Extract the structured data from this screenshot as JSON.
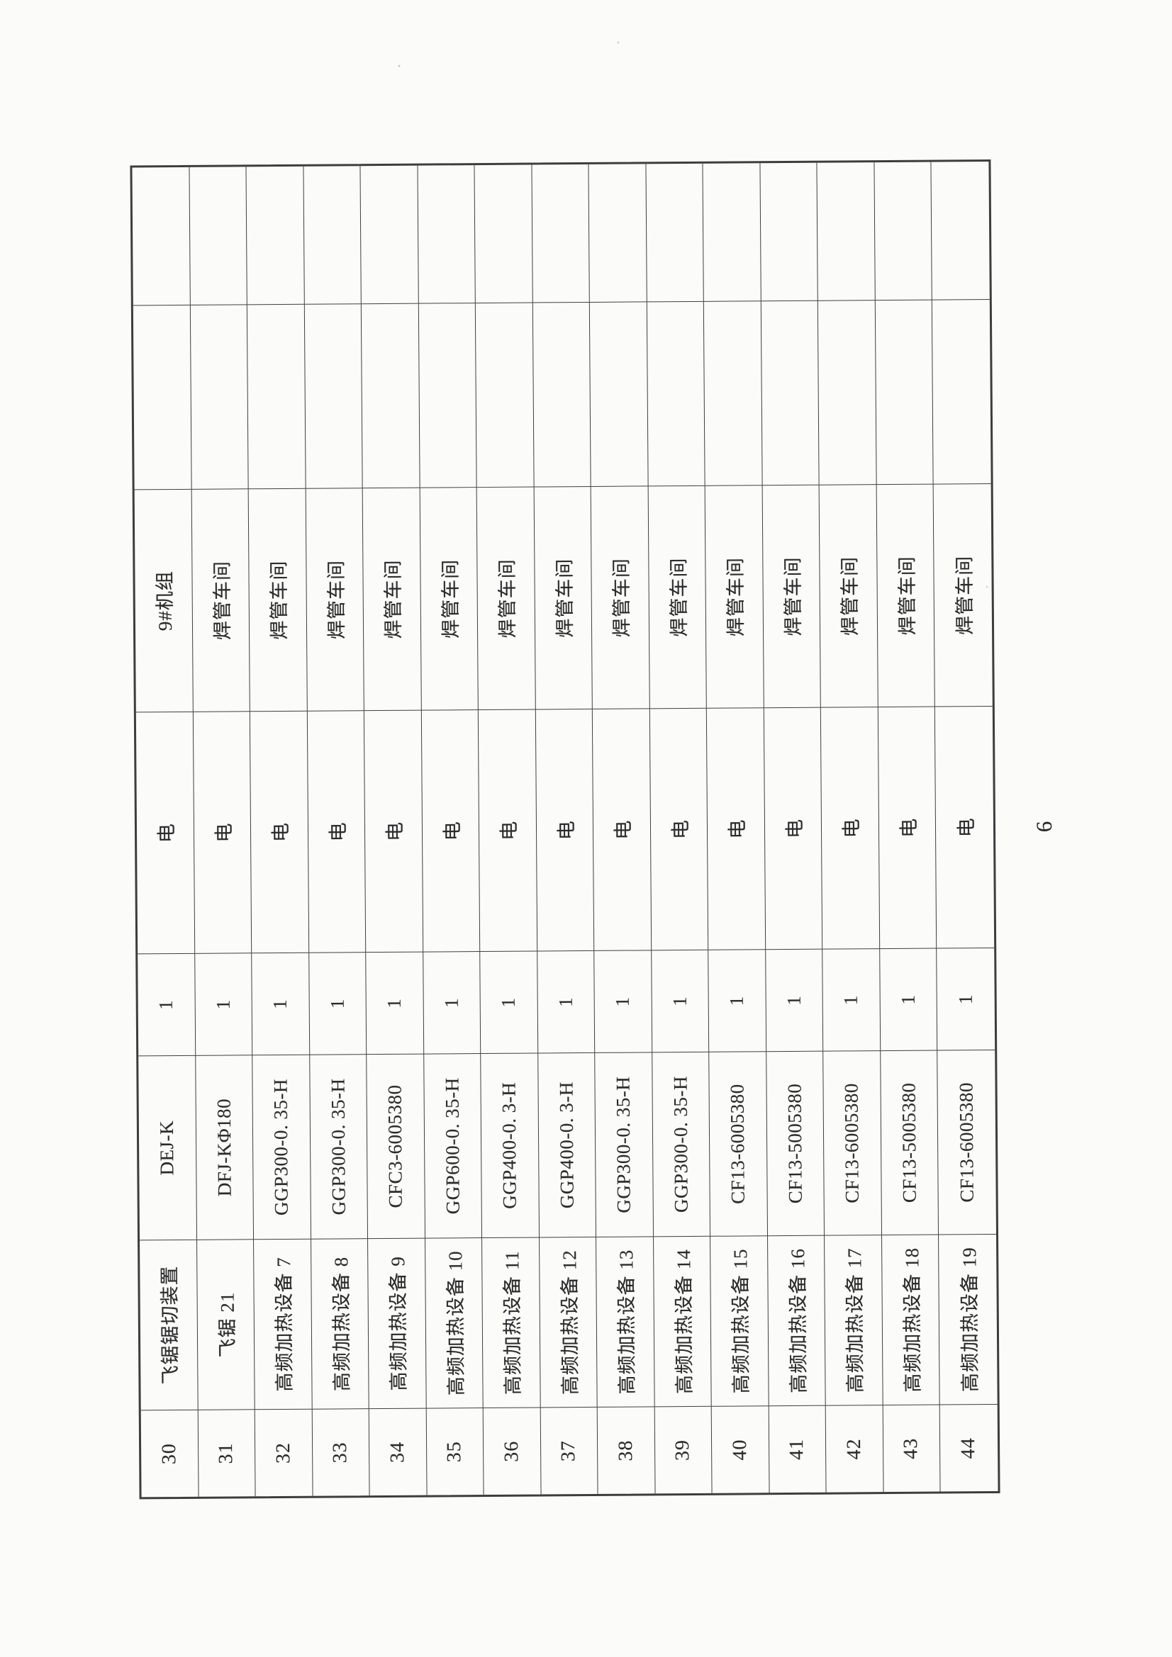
{
  "page": {
    "number": "6",
    "paper_color": "#fbfbfa",
    "ink_color": "#2b2b2b",
    "line_color": "#3d3d3d",
    "orientation_note": "table rotated 90deg CCW on portrait scan"
  },
  "table": {
    "rows": [
      {
        "no": "30",
        "name": "飞锯锯切装置",
        "model": "DEJ-K",
        "qty": "1",
        "power": "电",
        "workshop": "9#机组",
        "extra1": "",
        "extra2": ""
      },
      {
        "no": "31",
        "name": "飞锯 21",
        "model": "DFJ-KΦ180",
        "qty": "1",
        "power": "电",
        "workshop": "焊管车间",
        "extra1": "",
        "extra2": ""
      },
      {
        "no": "32",
        "name": "高频加热设备 7",
        "model": "GGP300-0. 35-H",
        "qty": "1",
        "power": "电",
        "workshop": "焊管车间",
        "extra1": "",
        "extra2": ""
      },
      {
        "no": "33",
        "name": "高频加热设备 8",
        "model": "GGP300-0. 35-H",
        "qty": "1",
        "power": "电",
        "workshop": "焊管车间",
        "extra1": "",
        "extra2": ""
      },
      {
        "no": "34",
        "name": "高频加热设备 9",
        "model": "CFC3-6005380",
        "qty": "1",
        "power": "电",
        "workshop": "焊管车间",
        "extra1": "",
        "extra2": ""
      },
      {
        "no": "35",
        "name": "高频加热设备 10",
        "model": "GGP600-0. 35-H",
        "qty": "1",
        "power": "电",
        "workshop": "焊管车间",
        "extra1": "",
        "extra2": ""
      },
      {
        "no": "36",
        "name": "高频加热设备 11",
        "model": "GGP400-0. 3-H",
        "qty": "1",
        "power": "电",
        "workshop": "焊管车间",
        "extra1": "",
        "extra2": ""
      },
      {
        "no": "37",
        "name": "高频加热设备 12",
        "model": "GGP400-0. 3-H",
        "qty": "1",
        "power": "电",
        "workshop": "焊管车间",
        "extra1": "",
        "extra2": ""
      },
      {
        "no": "38",
        "name": "高频加热设备 13",
        "model": "GGP300-0. 35-H",
        "qty": "1",
        "power": "电",
        "workshop": "焊管车间",
        "extra1": "",
        "extra2": ""
      },
      {
        "no": "39",
        "name": "高频加热设备 14",
        "model": "GGP300-0. 35-H",
        "qty": "1",
        "power": "电",
        "workshop": "焊管车间",
        "extra1": "",
        "extra2": ""
      },
      {
        "no": "40",
        "name": "高频加热设备 15",
        "model": "CF13-6005380",
        "qty": "1",
        "power": "电",
        "workshop": "焊管车间",
        "extra1": "",
        "extra2": ""
      },
      {
        "no": "41",
        "name": "高频加热设备 16",
        "model": "CF13-5005380",
        "qty": "1",
        "power": "电",
        "workshop": "焊管车间",
        "extra1": "",
        "extra2": ""
      },
      {
        "no": "42",
        "name": "高频加热设备 17",
        "model": "CF13-6005380",
        "qty": "1",
        "power": "电",
        "workshop": "焊管车间",
        "extra1": "",
        "extra2": ""
      },
      {
        "no": "43",
        "name": "高频加热设备 18",
        "model": "CF13-5005380",
        "qty": "1",
        "power": "电",
        "workshop": "焊管车间",
        "extra1": "",
        "extra2": ""
      },
      {
        "no": "44",
        "name": "高频加热设备 19",
        "model": "CF13-6005380",
        "qty": "1",
        "power": "电",
        "workshop": "焊管车间",
        "extra1": "",
        "extra2": ""
      }
    ]
  }
}
